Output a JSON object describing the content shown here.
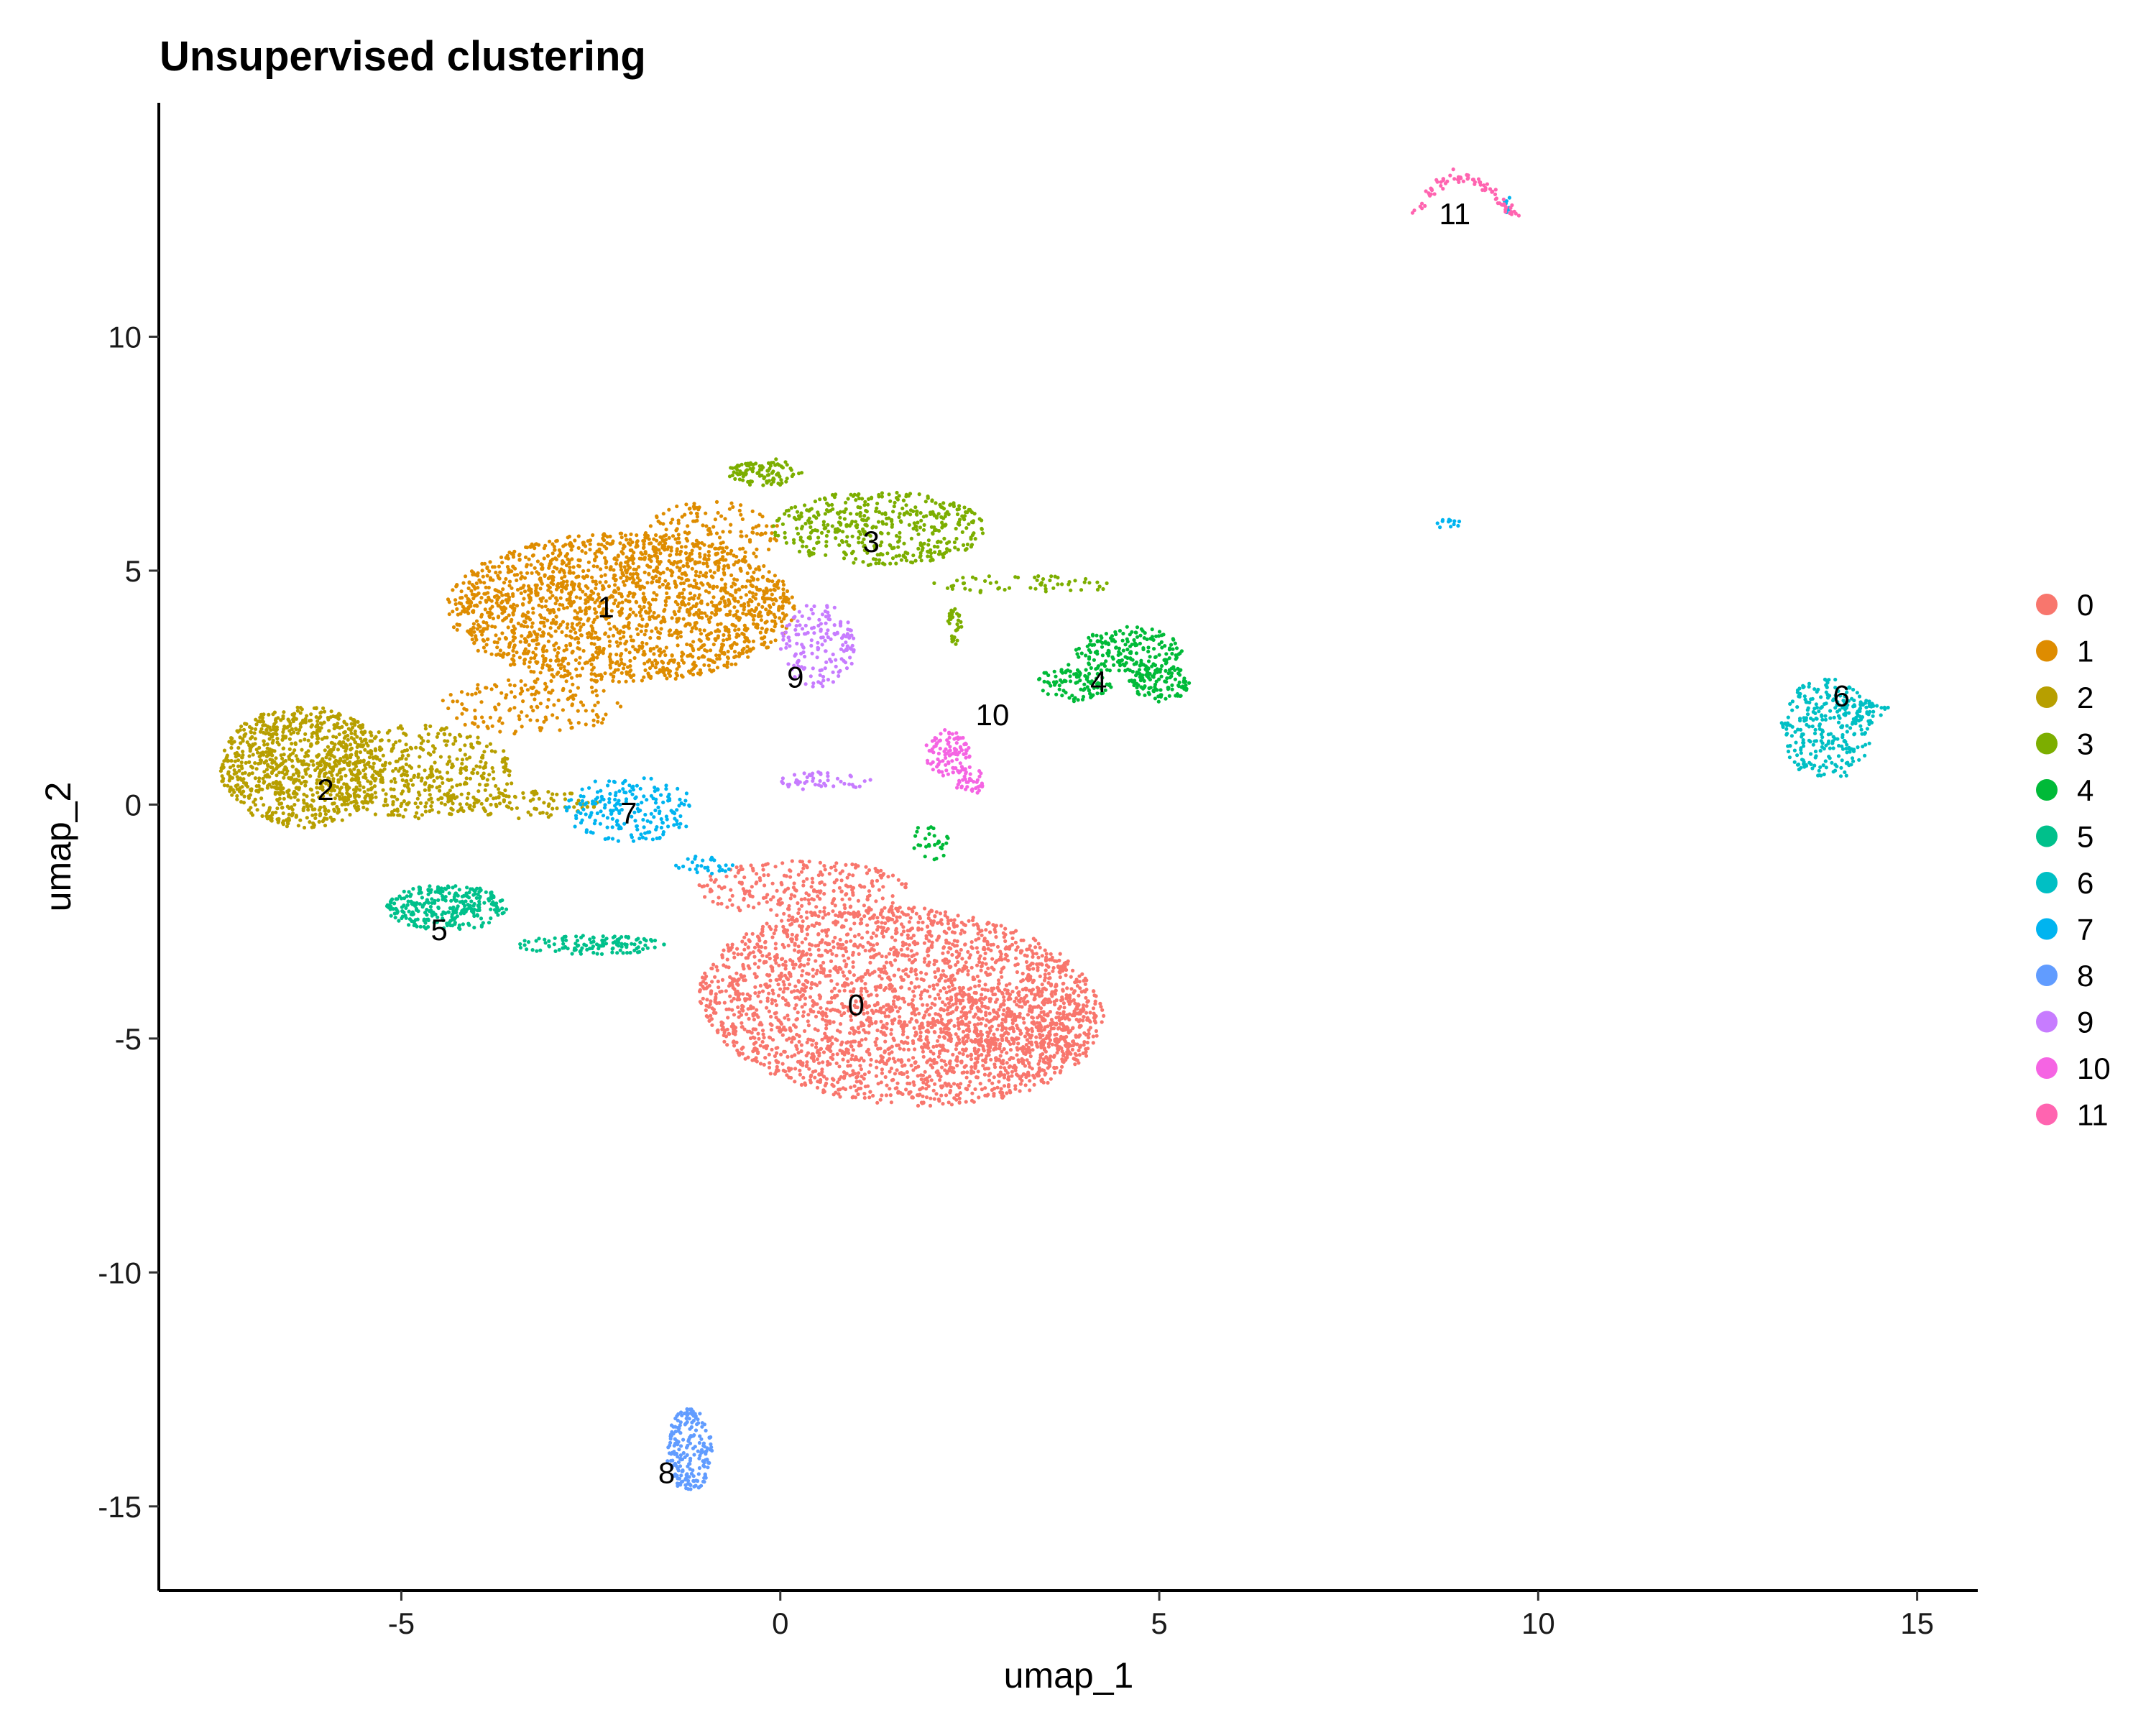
{
  "chart_data": {
    "type": "scatter",
    "title": "Unsupervised clustering",
    "xlabel": "umap_1",
    "ylabel": "umap_2",
    "xlim": [
      -8.2,
      15.8
    ],
    "ylim": [
      -16.8,
      15
    ],
    "xticks": [
      -5,
      0,
      5,
      10,
      15
    ],
    "xtick_labels": [
      "-5",
      "0",
      "5",
      "10",
      "15"
    ],
    "yticks": [
      -15,
      -10,
      -5,
      0,
      5,
      10
    ],
    "ytick_labels": [
      "-15",
      "-10",
      "-5",
      "0",
      "5",
      "10"
    ],
    "grid": false,
    "legend_position": "right",
    "clusters": [
      {
        "name": "0",
        "color": "#F8766D",
        "label_pos": [
          1.0,
          -4.5
        ],
        "regions": [
          {
            "cx": 1.6,
            "cy": -4.3,
            "rx": 2.7,
            "ry": 2.1,
            "n": 2600,
            "rot": -0.25
          },
          {
            "cx": 3.0,
            "cy": -4.8,
            "rx": 1.2,
            "ry": 0.9,
            "n": 350
          },
          {
            "cx": 0.3,
            "cy": -1.8,
            "rx": 1.4,
            "ry": 0.6,
            "n": 250
          }
        ]
      },
      {
        "name": "1",
        "color": "#DE8C00",
        "label_pos": [
          -2.3,
          4.0
        ],
        "regions": [
          {
            "cx": -2.1,
            "cy": 4.2,
            "rx": 2.3,
            "ry": 1.6,
            "n": 1900
          },
          {
            "cx": -0.9,
            "cy": 5.8,
            "rx": 0.9,
            "ry": 0.7,
            "n": 150
          },
          {
            "cx": -3.3,
            "cy": 2.1,
            "rx": 1.2,
            "ry": 0.6,
            "n": 150
          }
        ]
      },
      {
        "name": "2",
        "color": "#B79F00",
        "label_pos": [
          -6.0,
          0.1
        ],
        "regions": [
          {
            "cx": -6.3,
            "cy": 0.8,
            "rx": 1.1,
            "ry": 1.3,
            "n": 900
          },
          {
            "cx": -4.8,
            "cy": 0.7,
            "rx": 1.3,
            "ry": 1.0,
            "n": 450
          },
          {
            "cx": -3.3,
            "cy": 0.0,
            "rx": 0.9,
            "ry": 0.3,
            "n": 80
          }
        ]
      },
      {
        "name": "3",
        "color": "#7CAE00",
        "label_pos": [
          1.2,
          5.4
        ],
        "regions": [
          {
            "cx": 1.3,
            "cy": 5.9,
            "rx": 1.4,
            "ry": 0.8,
            "n": 450
          },
          {
            "cx": -0.2,
            "cy": 7.1,
            "rx": 0.5,
            "ry": 0.3,
            "n": 100
          },
          {
            "cx": 3.2,
            "cy": 4.7,
            "rx": 1.2,
            "ry": 0.2,
            "n": 60
          },
          {
            "cx": 2.3,
            "cy": 3.8,
            "rx": 0.1,
            "ry": 0.4,
            "n": 30
          }
        ]
      },
      {
        "name": "4",
        "color": "#00BA38",
        "label_pos": [
          4.2,
          2.4
        ],
        "regions": [
          {
            "cx": 4.6,
            "cy": 3.3,
            "rx": 0.7,
            "ry": 0.5,
            "n": 180
          },
          {
            "cx": 5.0,
            "cy": 2.6,
            "rx": 0.4,
            "ry": 0.4,
            "n": 120
          },
          {
            "cx": 3.9,
            "cy": 2.6,
            "rx": 0.5,
            "ry": 0.4,
            "n": 100
          },
          {
            "cx": 2.0,
            "cy": -0.8,
            "rx": 0.3,
            "ry": 0.4,
            "n": 30
          }
        ]
      },
      {
        "name": "5",
        "color": "#00C08B",
        "label_pos": [
          -4.5,
          -2.9
        ],
        "regions": [
          {
            "cx": -4.4,
            "cy": -2.2,
            "rx": 0.8,
            "ry": 0.5,
            "n": 300
          },
          {
            "cx": -2.5,
            "cy": -3.0,
            "rx": 1.0,
            "ry": 0.2,
            "n": 120
          }
        ]
      },
      {
        "name": "6",
        "color": "#00BFC4",
        "label_pos": [
          14.0,
          2.1
        ],
        "regions": [
          {
            "cx": 13.8,
            "cy": 1.6,
            "rx": 0.6,
            "ry": 1.1,
            "n": 280
          },
          {
            "cx": 14.3,
            "cy": 2.0,
            "rx": 0.4,
            "ry": 0.3,
            "n": 40
          }
        ]
      },
      {
        "name": "7",
        "color": "#00B4F0",
        "label_pos": [
          -2.0,
          -0.4
        ],
        "regions": [
          {
            "cx": -2.0,
            "cy": -0.1,
            "rx": 0.9,
            "ry": 0.7,
            "n": 200
          },
          {
            "cx": -1.0,
            "cy": -1.3,
            "rx": 0.4,
            "ry": 0.2,
            "n": 30
          },
          {
            "cx": 8.8,
            "cy": 6.0,
            "rx": 0.2,
            "ry": 0.1,
            "n": 12
          },
          {
            "cx": 9.6,
            "cy": 12.8,
            "rx": 0.05,
            "ry": 0.2,
            "n": 10
          }
        ]
      },
      {
        "name": "8",
        "color": "#619CFF",
        "label_pos": [
          -1.5,
          -14.5
        ],
        "regions": [
          {
            "cx": -1.2,
            "cy": -13.8,
            "rx": 0.3,
            "ry": 0.9,
            "n": 200
          }
        ]
      },
      {
        "name": "9",
        "color": "#C77CFF",
        "label_pos": [
          0.2,
          2.5
        ],
        "regions": [
          {
            "cx": 0.5,
            "cy": 3.4,
            "rx": 0.5,
            "ry": 0.9,
            "n": 160
          },
          {
            "cx": 0.6,
            "cy": 0.5,
            "rx": 0.6,
            "ry": 0.2,
            "n": 50
          }
        ]
      },
      {
        "name": "10",
        "color": "#F564E3",
        "label_pos": [
          2.8,
          1.7
        ],
        "regions": [
          {
            "cx": 2.2,
            "cy": 1.1,
            "rx": 0.3,
            "ry": 0.5,
            "n": 100
          },
          {
            "cx": 2.5,
            "cy": 0.5,
            "rx": 0.2,
            "ry": 0.3,
            "n": 40
          }
        ]
      },
      {
        "name": "11",
        "color": "#FF64B0",
        "label_pos": [
          8.9,
          12.4
        ],
        "regions": [
          {
            "arc": true,
            "x0": 8.4,
            "x1": 9.7,
            "yb": 12.6,
            "h": 0.8,
            "n": 80
          }
        ]
      }
    ],
    "legend": [
      "0",
      "1",
      "2",
      "3",
      "4",
      "5",
      "6",
      "7",
      "8",
      "9",
      "10",
      "11"
    ]
  }
}
